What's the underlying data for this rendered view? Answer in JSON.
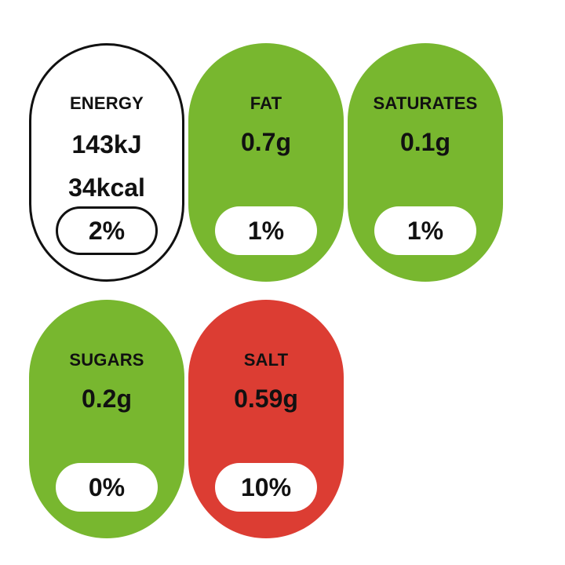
{
  "items": [
    {
      "name": "ENERGY",
      "amounts": [
        "143kJ",
        "34kcal"
      ],
      "percent": "2%",
      "color": "#ffffff"
    },
    {
      "name": "FAT",
      "amounts": [
        "0.7g"
      ],
      "percent": "1%",
      "color": "#78b72f"
    },
    {
      "name": "SATURATES",
      "amounts": [
        "0.1g"
      ],
      "percent": "1%",
      "color": "#78b72f"
    },
    {
      "name": "SUGARS",
      "amounts": [
        "0.2g"
      ],
      "percent": "0%",
      "color": "#78b72f"
    },
    {
      "name": "SALT",
      "amounts": [
        "0.59g"
      ],
      "percent": "10%",
      "color": "#dc3d33"
    }
  ]
}
